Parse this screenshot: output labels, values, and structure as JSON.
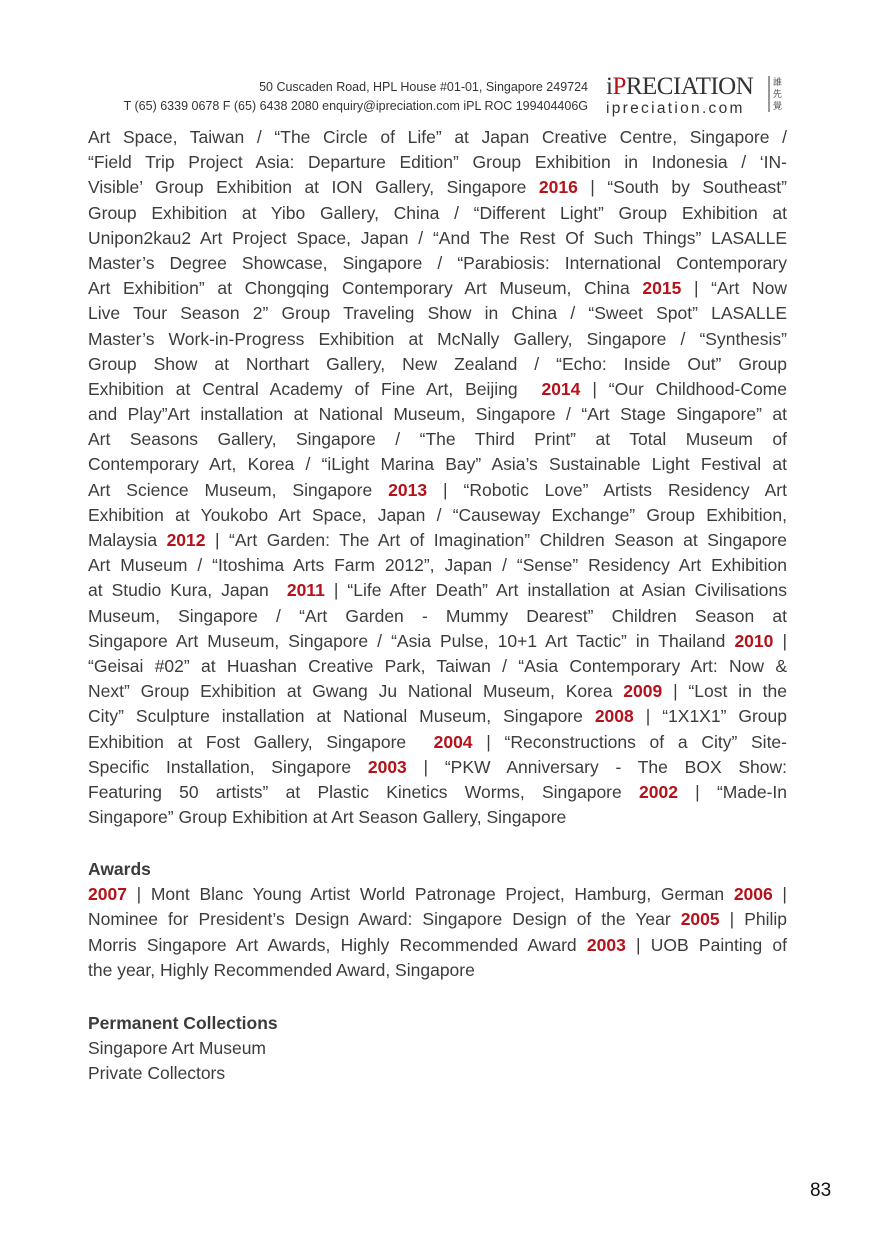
{
  "header": {
    "address": "50 Cuscaden Road, HPL House #01-01, Singapore 249724",
    "contact": "T (65) 6339 0678  F (65) 6438 2080  enquiry@ipreciation.com  iPL ROC 199404406G",
    "logo": {
      "i": "i",
      "p": "P",
      "rest": "RECIATION",
      "domain": "ipreciation.com",
      "chinese": "誰先覺"
    }
  },
  "colors": {
    "accent": "#b5121b",
    "text": "#3c3c3c"
  },
  "exhibitions": {
    "lines": [
      [
        {
          "t": "Art Space, Taiwan / “The Circle of Life” at Japan Creative Centre, Singapore /"
        }
      ],
      [
        {
          "t": "“Field Trip Project Asia: Departure Edition” Group Exhibition in Indonesia / ‘IN-"
        }
      ],
      [
        {
          "t": "Visible’ Group Exhibition at ION Gallery, Singapore "
        },
        {
          "y": "2016"
        },
        {
          "t": " | “South by Southeast”"
        }
      ],
      [
        {
          "t": "Group Exhibition at Yibo Gallery, China / “Different Light” Group Exhibition at"
        }
      ],
      [
        {
          "t": "Unipon2kau2 Art Project Space, Japan / “And The Rest Of Such Things” LASALLE"
        }
      ],
      [
        {
          "t": "Master’s Degree Showcase, Singapore / “Parabiosis: International Contemporary"
        }
      ],
      [
        {
          "t": "Art Exhibition” at Chongqing Contemporary Art Museum, China "
        },
        {
          "y": "2015"
        },
        {
          "t": " | “Art Now"
        }
      ],
      [
        {
          "t": "Live Tour Season 2” Group Traveling Show in China / “Sweet Spot” LASALLE"
        }
      ],
      [
        {
          "t": "Master’s Work-in-Progress Exhibition at McNally Gallery, Singapore / “Synthesis”"
        }
      ],
      [
        {
          "t": "Group Show at Northart Gallery, New Zealand / “Echo: Inside Out” Group"
        }
      ],
      [
        {
          "t": "Exhibition at Central Academy of Fine Art, Beijing  "
        },
        {
          "y": "2014"
        },
        {
          "t": " | “Our Childhood-Come"
        }
      ],
      [
        {
          "t": "and Play”Art installation at National Museum, Singapore / “Art Stage Singapore” at"
        }
      ],
      [
        {
          "t": "Art Seasons Gallery, Singapore / “The Third Print” at Total Museum of"
        }
      ],
      [
        {
          "t": "Contemporary Art, Korea / “iLight Marina Bay” Asia’s Sustainable Light Festival at"
        }
      ],
      [
        {
          "t": "Art Science Museum, Singapore "
        },
        {
          "y": "2013"
        },
        {
          "t": " | “Robotic Love” Artists Residency Art"
        }
      ],
      [
        {
          "t": "Exhibition at Youkobo Art Space, Japan / “Causeway Exchange” Group Exhibition,"
        }
      ],
      [
        {
          "t": "Malaysia "
        },
        {
          "y": "2012"
        },
        {
          "t": " | “Art Garden: The Art of Imagination” Children Season at Singapore"
        }
      ],
      [
        {
          "t": "Art Museum / “Itoshima Arts Farm 2012”, Japan / “Sense” Residency Art Exhibition"
        }
      ],
      [
        {
          "t": "at Studio Kura, Japan  "
        },
        {
          "y": "2011"
        },
        {
          "t": " | “Life After Death” Art installation at Asian Civilisations"
        }
      ],
      [
        {
          "t": "Museum, Singapore / “Art Garden - Mummy Dearest” Children Season at"
        }
      ],
      [
        {
          "t": "Singapore Art Museum, Singapore / “Asia Pulse, 10+1 Art Tactic” in Thailand "
        },
        {
          "y": "2010"
        },
        {
          "t": " |"
        }
      ],
      [
        {
          "t": "“Geisai #02” at Huashan Creative Park, Taiwan / “Asia Contemporary Art: Now &"
        }
      ],
      [
        {
          "t": "Next” Group Exhibition at Gwang Ju National Museum, Korea "
        },
        {
          "y": "2009"
        },
        {
          "t": " | “Lost in the"
        }
      ],
      [
        {
          "t": "City” Sculpture installation at National Museum, Singapore "
        },
        {
          "y": "2008"
        },
        {
          "t": " | “1X1X1” Group"
        }
      ],
      [
        {
          "t": "Exhibition at Fost Gallery, Singapore  "
        },
        {
          "y": "2004"
        },
        {
          "t": " | “Reconstructions of a City” Site-"
        }
      ],
      [
        {
          "t": "Specific Installation, Singapore "
        },
        {
          "y": "2003"
        },
        {
          "t": " | “PKW Anniversary - The BOX Show:"
        }
      ],
      [
        {
          "t": "Featuring 50 artists” at Plastic Kinetics Worms, Singapore "
        },
        {
          "y": "2002"
        },
        {
          "t": " | “Made-In"
        }
      ],
      [
        {
          "t": "Singapore” Group Exhibition at Art Season Gallery, Singapore"
        }
      ]
    ]
  },
  "awards": {
    "title": "Awards",
    "lines": [
      [
        {
          "y": "2007"
        },
        {
          "t": " | Mont Blanc Young Artist World Patronage Project, Hamburg, German "
        },
        {
          "y": "2006"
        },
        {
          "t": " |"
        }
      ],
      [
        {
          "t": "Nominee for President’s Design Award: Singapore Design of the Year "
        },
        {
          "y": "2005"
        },
        {
          "t": " | Philip"
        }
      ],
      [
        {
          "t": "Morris Singapore Art Awards, Highly Recommended Award "
        },
        {
          "y": "2003"
        },
        {
          "t": " | UOB Painting of"
        }
      ],
      [
        {
          "t": "the year, Highly Recommended Award, Singapore"
        }
      ]
    ]
  },
  "collections": {
    "title": "Permanent Collections",
    "items": [
      "Singapore Art Museum",
      "Private Collectors"
    ]
  },
  "page_number": "83"
}
